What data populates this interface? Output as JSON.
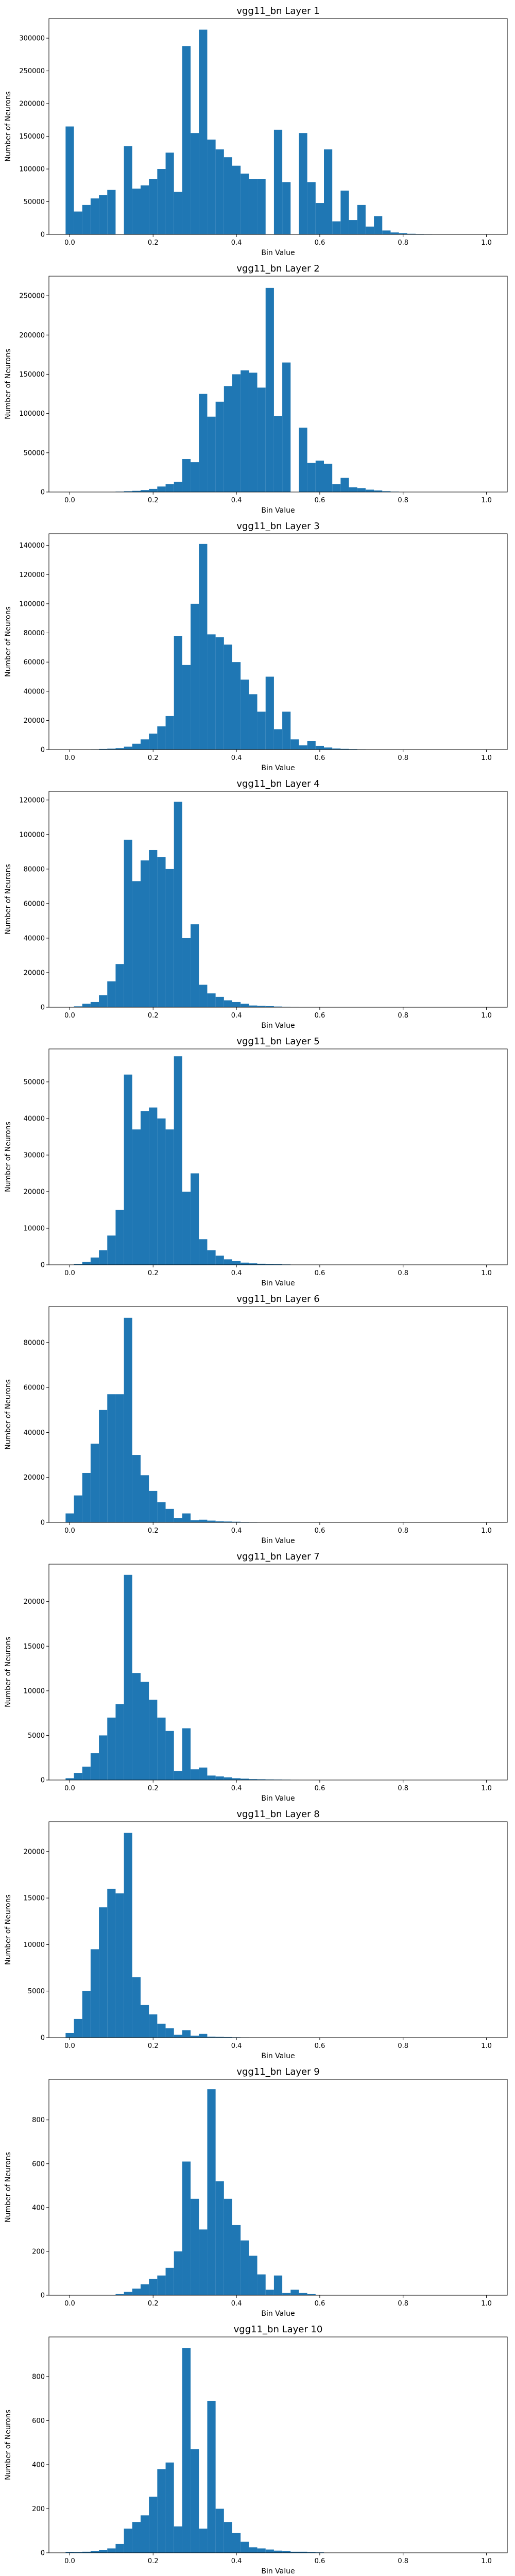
{
  "figure": {
    "bar_color": "#1f77b4"
  },
  "chart_data": [
    {
      "type": "bar",
      "title": "vgg11_bn Layer 1",
      "xlabel": "Bin Value",
      "ylabel": "Number of Neurons",
      "xlim": [
        -0.05,
        1.05
      ],
      "ylim": [
        0,
        330000
      ],
      "xticks": [
        0.0,
        0.2,
        0.4,
        0.6,
        0.8,
        1.0
      ],
      "xtick_labels": [
        "0.0",
        "0.2",
        "0.4",
        "0.6",
        "0.8",
        "1.0"
      ],
      "yticks": [
        0,
        50000,
        100000,
        150000,
        200000,
        250000,
        300000
      ],
      "ytick_labels": [
        "0",
        "50000",
        "100000",
        "150000",
        "200000",
        "250000",
        "300000"
      ],
      "bin_width": 0.02,
      "x": [
        0.0,
        0.02,
        0.04,
        0.06,
        0.08,
        0.1,
        0.14,
        0.16,
        0.18,
        0.2,
        0.22,
        0.24,
        0.26,
        0.28,
        0.3,
        0.32,
        0.34,
        0.36,
        0.38,
        0.4,
        0.42,
        0.44,
        0.46,
        0.5,
        0.52,
        0.56,
        0.58,
        0.6,
        0.62,
        0.64,
        0.66,
        0.68,
        0.7,
        0.72,
        0.74,
        0.76,
        0.78,
        0.8,
        0.82,
        0.84,
        0.86,
        0.88,
        0.9,
        0.92,
        0.94,
        0.96,
        0.98
      ],
      "values": [
        165000,
        35000,
        45000,
        55000,
        60000,
        68000,
        135000,
        70000,
        75000,
        85000,
        100000,
        125000,
        65000,
        288000,
        155000,
        313000,
        145000,
        130000,
        118000,
        105000,
        93000,
        85000,
        85000,
        160000,
        80000,
        155000,
        80000,
        48000,
        130000,
        20000,
        67000,
        22000,
        45000,
        12000,
        28000,
        6000,
        3000,
        2000,
        1000,
        700,
        500,
        300,
        200,
        150,
        100,
        80,
        50
      ]
    },
    {
      "type": "bar",
      "title": "vgg11_bn Layer 2",
      "xlabel": "Bin Value",
      "ylabel": "Number of Neurons",
      "xlim": [
        -0.05,
        1.05
      ],
      "ylim": [
        0,
        275000
      ],
      "xticks": [
        0.0,
        0.2,
        0.4,
        0.6,
        0.8,
        1.0
      ],
      "xtick_labels": [
        "0.0",
        "0.2",
        "0.4",
        "0.6",
        "0.8",
        "1.0"
      ],
      "yticks": [
        0,
        50000,
        100000,
        150000,
        200000,
        250000
      ],
      "ytick_labels": [
        "0",
        "50000",
        "100000",
        "150000",
        "200000",
        "250000"
      ],
      "bin_width": 0.02,
      "x": [
        0.12,
        0.14,
        0.16,
        0.18,
        0.2,
        0.22,
        0.24,
        0.26,
        0.28,
        0.3,
        0.32,
        0.34,
        0.36,
        0.38,
        0.4,
        0.42,
        0.44,
        0.46,
        0.48,
        0.5,
        0.52,
        0.56,
        0.58,
        0.6,
        0.62,
        0.64,
        0.66,
        0.68,
        0.7,
        0.72,
        0.74,
        0.76,
        0.78,
        0.8
      ],
      "values": [
        500,
        1000,
        1500,
        2500,
        4000,
        7000,
        10000,
        13000,
        42000,
        38000,
        125000,
        96000,
        115000,
        135000,
        150000,
        155000,
        152000,
        133000,
        260000,
        97000,
        165000,
        82000,
        37000,
        40000,
        36000,
        10000,
        18000,
        6000,
        5000,
        3000,
        2000,
        1000,
        500,
        300
      ]
    },
    {
      "type": "bar",
      "title": "vgg11_bn Layer 3",
      "xlabel": "Bin Value",
      "ylabel": "Number of Neurons",
      "xlim": [
        -0.05,
        1.05
      ],
      "ylim": [
        0,
        148000
      ],
      "xticks": [
        0.0,
        0.2,
        0.4,
        0.6,
        0.8,
        1.0
      ],
      "xtick_labels": [
        "0.0",
        "0.2",
        "0.4",
        "0.6",
        "0.8",
        "1.0"
      ],
      "yticks": [
        0,
        20000,
        40000,
        60000,
        80000,
        100000,
        120000,
        140000
      ],
      "ytick_labels": [
        "0",
        "20000",
        "40000",
        "60000",
        "80000",
        "100000",
        "120000",
        "140000"
      ],
      "bin_width": 0.02,
      "x": [
        0.06,
        0.08,
        0.1,
        0.12,
        0.14,
        0.16,
        0.18,
        0.2,
        0.22,
        0.24,
        0.26,
        0.28,
        0.3,
        0.32,
        0.34,
        0.36,
        0.38,
        0.4,
        0.42,
        0.44,
        0.46,
        0.48,
        0.5,
        0.52,
        0.54,
        0.56,
        0.58,
        0.6,
        0.62,
        0.64,
        0.66,
        0.68,
        0.7,
        0.72,
        0.74
      ],
      "values": [
        200,
        400,
        700,
        1000,
        2000,
        4000,
        7000,
        11000,
        16000,
        23000,
        78000,
        58000,
        100000,
        141000,
        79000,
        77000,
        72000,
        60000,
        48000,
        38000,
        26000,
        50000,
        14000,
        26000,
        7000,
        3000,
        6000,
        2500,
        1500,
        800,
        500,
        300,
        200,
        100,
        50
      ]
    },
    {
      "type": "bar",
      "title": "vgg11_bn Layer 4",
      "xlabel": "Bin Value",
      "ylabel": "Number of Neurons",
      "xlim": [
        -0.05,
        1.05
      ],
      "ylim": [
        0,
        125000
      ],
      "xticks": [
        0.0,
        0.2,
        0.4,
        0.6,
        0.8,
        1.0
      ],
      "xtick_labels": [
        "0.0",
        "0.2",
        "0.4",
        "0.6",
        "0.8",
        "1.0"
      ],
      "yticks": [
        0,
        20000,
        40000,
        60000,
        80000,
        100000,
        120000
      ],
      "ytick_labels": [
        "0",
        "20000",
        "40000",
        "60000",
        "80000",
        "100000",
        "120000"
      ],
      "bin_width": 0.02,
      "x": [
        0.02,
        0.04,
        0.06,
        0.08,
        0.1,
        0.12,
        0.14,
        0.16,
        0.18,
        0.2,
        0.22,
        0.24,
        0.26,
        0.28,
        0.3,
        0.32,
        0.34,
        0.36,
        0.38,
        0.4,
        0.42,
        0.44,
        0.46,
        0.48,
        0.5,
        0.52,
        0.54,
        0.56,
        0.58
      ],
      "values": [
        500,
        2000,
        3000,
        7000,
        15000,
        25000,
        97000,
        73000,
        85000,
        91000,
        87000,
        80000,
        119000,
        40000,
        48000,
        13000,
        8000,
        6000,
        4000,
        3000,
        2000,
        1000,
        800,
        600,
        400,
        300,
        200,
        100,
        80
      ]
    },
    {
      "type": "bar",
      "title": "vgg11_bn Layer 5",
      "xlabel": "Bin Value",
      "ylabel": "Number of Neurons",
      "xlim": [
        -0.05,
        1.05
      ],
      "ylim": [
        0,
        59000
      ],
      "xticks": [
        0.0,
        0.2,
        0.4,
        0.6,
        0.8,
        1.0
      ],
      "xtick_labels": [
        "0.0",
        "0.2",
        "0.4",
        "0.6",
        "0.8",
        "1.0"
      ],
      "yticks": [
        0,
        10000,
        20000,
        30000,
        40000,
        50000
      ],
      "ytick_labels": [
        "0",
        "10000",
        "20000",
        "30000",
        "40000",
        "50000"
      ],
      "bin_width": 0.02,
      "x": [
        0.02,
        0.04,
        0.06,
        0.08,
        0.1,
        0.12,
        0.14,
        0.16,
        0.18,
        0.2,
        0.22,
        0.24,
        0.26,
        0.28,
        0.3,
        0.32,
        0.34,
        0.36,
        0.38,
        0.4,
        0.42,
        0.44,
        0.46,
        0.48,
        0.5,
        0.52
      ],
      "values": [
        200,
        800,
        2000,
        4000,
        8000,
        15000,
        52000,
        37000,
        42000,
        43000,
        40000,
        37000,
        57000,
        20000,
        25000,
        7000,
        4000,
        2500,
        1500,
        1000,
        600,
        400,
        300,
        200,
        150,
        100
      ]
    },
    {
      "type": "bar",
      "title": "vgg11_bn Layer 6",
      "xlabel": "Bin Value",
      "ylabel": "Number of Neurons",
      "xlim": [
        -0.05,
        1.05
      ],
      "ylim": [
        0,
        96000
      ],
      "xticks": [
        0.0,
        0.2,
        0.4,
        0.6,
        0.8,
        1.0
      ],
      "xtick_labels": [
        "0.0",
        "0.2",
        "0.4",
        "0.6",
        "0.8",
        "1.0"
      ],
      "yticks": [
        0,
        20000,
        40000,
        60000,
        80000
      ],
      "ytick_labels": [
        "0",
        "20000",
        "40000",
        "60000",
        "80000"
      ],
      "bin_width": 0.02,
      "x": [
        0.0,
        0.02,
        0.04,
        0.06,
        0.08,
        0.1,
        0.12,
        0.14,
        0.16,
        0.18,
        0.2,
        0.22,
        0.24,
        0.26,
        0.28,
        0.3,
        0.32,
        0.34,
        0.36,
        0.38,
        0.4,
        0.42,
        0.44,
        0.46,
        0.48
      ],
      "values": [
        4000,
        12000,
        22000,
        35000,
        50000,
        57000,
        57000,
        91000,
        30000,
        21000,
        14000,
        9000,
        6000,
        2000,
        4000,
        1000,
        1200,
        800,
        500,
        400,
        300,
        200,
        150,
        100,
        50
      ]
    },
    {
      "type": "bar",
      "title": "vgg11_bn Layer 7",
      "xlabel": "Bin Value",
      "ylabel": "Number of Neurons",
      "xlim": [
        -0.05,
        1.05
      ],
      "ylim": [
        0,
        24200
      ],
      "xticks": [
        0.0,
        0.2,
        0.4,
        0.6,
        0.8,
        1.0
      ],
      "xtick_labels": [
        "0.0",
        "0.2",
        "0.4",
        "0.6",
        "0.8",
        "1.0"
      ],
      "yticks": [
        0,
        5000,
        10000,
        15000,
        20000
      ],
      "ytick_labels": [
        "0",
        "5000",
        "10000",
        "15000",
        "20000"
      ],
      "bin_width": 0.02,
      "x": [
        0.0,
        0.02,
        0.04,
        0.06,
        0.08,
        0.1,
        0.12,
        0.14,
        0.16,
        0.18,
        0.2,
        0.22,
        0.24,
        0.26,
        0.28,
        0.3,
        0.32,
        0.34,
        0.36,
        0.38,
        0.4,
        0.42,
        0.44,
        0.46,
        0.48,
        0.5,
        0.52,
        0.54,
        0.56
      ],
      "values": [
        200,
        800,
        1500,
        3000,
        5000,
        7000,
        8500,
        23000,
        12000,
        11000,
        9000,
        7000,
        5500,
        1000,
        5800,
        1200,
        1400,
        500,
        400,
        300,
        200,
        150,
        100,
        80,
        60,
        50,
        40,
        30,
        20
      ]
    },
    {
      "type": "bar",
      "title": "vgg11_bn Layer 8",
      "xlabel": "Bin Value",
      "ylabel": "Number of Neurons",
      "xlim": [
        -0.05,
        1.05
      ],
      "ylim": [
        0,
        23200
      ],
      "xticks": [
        0.0,
        0.2,
        0.4,
        0.6,
        0.8,
        1.0
      ],
      "xtick_labels": [
        "0.0",
        "0.2",
        "0.4",
        "0.6",
        "0.8",
        "1.0"
      ],
      "yticks": [
        0,
        5000,
        10000,
        15000,
        20000
      ],
      "ytick_labels": [
        "0",
        "5000",
        "10000",
        "15000",
        "20000"
      ],
      "bin_width": 0.02,
      "x": [
        0.0,
        0.02,
        0.04,
        0.06,
        0.08,
        0.1,
        0.12,
        0.14,
        0.16,
        0.18,
        0.2,
        0.22,
        0.24,
        0.26,
        0.28,
        0.3,
        0.32,
        0.34,
        0.36,
        0.38,
        0.4,
        0.42,
        0.44
      ],
      "values": [
        500,
        2000,
        5000,
        9500,
        14000,
        16000,
        15500,
        22000,
        6500,
        3500,
        2500,
        1500,
        1000,
        300,
        800,
        200,
        400,
        100,
        80,
        60,
        40,
        30,
        20
      ]
    },
    {
      "type": "bar",
      "title": "vgg11_bn Layer 9",
      "xlabel": "Bin Value",
      "ylabel": "Number of Neurons",
      "xlim": [
        -0.05,
        1.05
      ],
      "ylim": [
        0,
        985
      ],
      "xticks": [
        0.0,
        0.2,
        0.4,
        0.6,
        0.8,
        1.0
      ],
      "xtick_labels": [
        "0.0",
        "0.2",
        "0.4",
        "0.6",
        "0.8",
        "1.0"
      ],
      "yticks": [
        0,
        200,
        400,
        600,
        800
      ],
      "ytick_labels": [
        "0",
        "200",
        "400",
        "600",
        "800"
      ],
      "bin_width": 0.02,
      "x": [
        0.12,
        0.14,
        0.16,
        0.18,
        0.2,
        0.22,
        0.24,
        0.26,
        0.28,
        0.3,
        0.32,
        0.34,
        0.36,
        0.38,
        0.4,
        0.42,
        0.44,
        0.46,
        0.48,
        0.5,
        0.52,
        0.54,
        0.56,
        0.58
      ],
      "values": [
        5,
        15,
        30,
        50,
        75,
        90,
        125,
        200,
        610,
        440,
        300,
        940,
        520,
        440,
        320,
        250,
        180,
        95,
        25,
        90,
        10,
        25,
        10,
        5
      ]
    },
    {
      "type": "bar",
      "title": "vgg11_bn Layer 10",
      "xlabel": "Bin Value",
      "ylabel": "Number of Neurons",
      "xlim": [
        -0.05,
        1.05
      ],
      "ylim": [
        0,
        980
      ],
      "xticks": [
        0.0,
        0.2,
        0.4,
        0.6,
        0.8,
        1.0
      ],
      "xtick_labels": [
        "0.0",
        "0.2",
        "0.4",
        "0.6",
        "0.8",
        "1.0"
      ],
      "yticks": [
        0,
        200,
        400,
        600,
        800
      ],
      "ytick_labels": [
        "0",
        "200",
        "400",
        "600",
        "800"
      ],
      "bin_width": 0.02,
      "x": [
        0.0,
        0.02,
        0.04,
        0.06,
        0.08,
        0.1,
        0.12,
        0.14,
        0.16,
        0.18,
        0.2,
        0.22,
        0.24,
        0.26,
        0.28,
        0.3,
        0.32,
        0.34,
        0.36,
        0.38,
        0.4,
        0.42,
        0.44,
        0.46,
        0.48,
        0.5,
        0.52,
        0.54,
        0.56,
        0.58,
        0.6
      ],
      "values": [
        4,
        3,
        5,
        8,
        12,
        20,
        40,
        110,
        140,
        170,
        255,
        380,
        410,
        120,
        930,
        470,
        110,
        690,
        200,
        140,
        90,
        50,
        25,
        20,
        15,
        10,
        8,
        5,
        5,
        3,
        2
      ]
    }
  ]
}
